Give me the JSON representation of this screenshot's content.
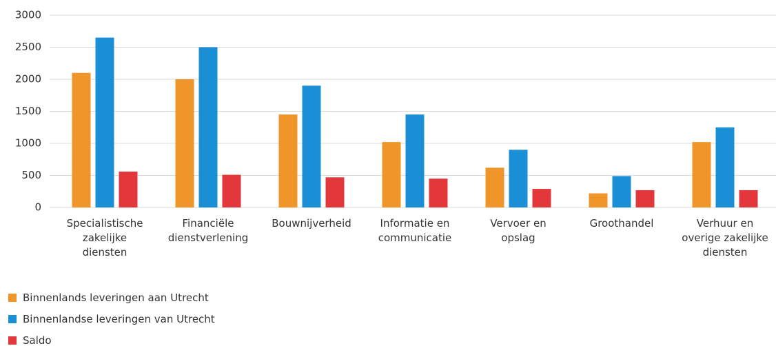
{
  "chart_data": {
    "type": "bar",
    "categories": [
      "Specialistische\nzakelijke\ndiensten",
      "Financiële\ndienstverlening",
      "Bouwnijverheid",
      "Informatie en\ncommunicatie",
      "Vervoer en\nopslag",
      "Groothandel",
      "Verhuur en\noverige zakelijke\ndiensten"
    ],
    "series": [
      {
        "name": "Binnenlands leveringen aan Utrecht",
        "color": "#f0952a",
        "values": [
          2100,
          2000,
          1450,
          1020,
          620,
          220,
          1020
        ]
      },
      {
        "name": "Binnenlandse leveringen van Utrecht",
        "color": "#1a8fd6",
        "values": [
          2650,
          2500,
          1900,
          1450,
          900,
          490,
          1250
        ]
      },
      {
        "name": "Saldo",
        "color": "#e2383c",
        "values": [
          560,
          510,
          470,
          450,
          290,
          270,
          270
        ]
      }
    ],
    "ylim": [
      0,
      3000
    ],
    "yticks": [
      0,
      500,
      1000,
      1500,
      2000,
      2500,
      3000
    ],
    "grid": true
  }
}
